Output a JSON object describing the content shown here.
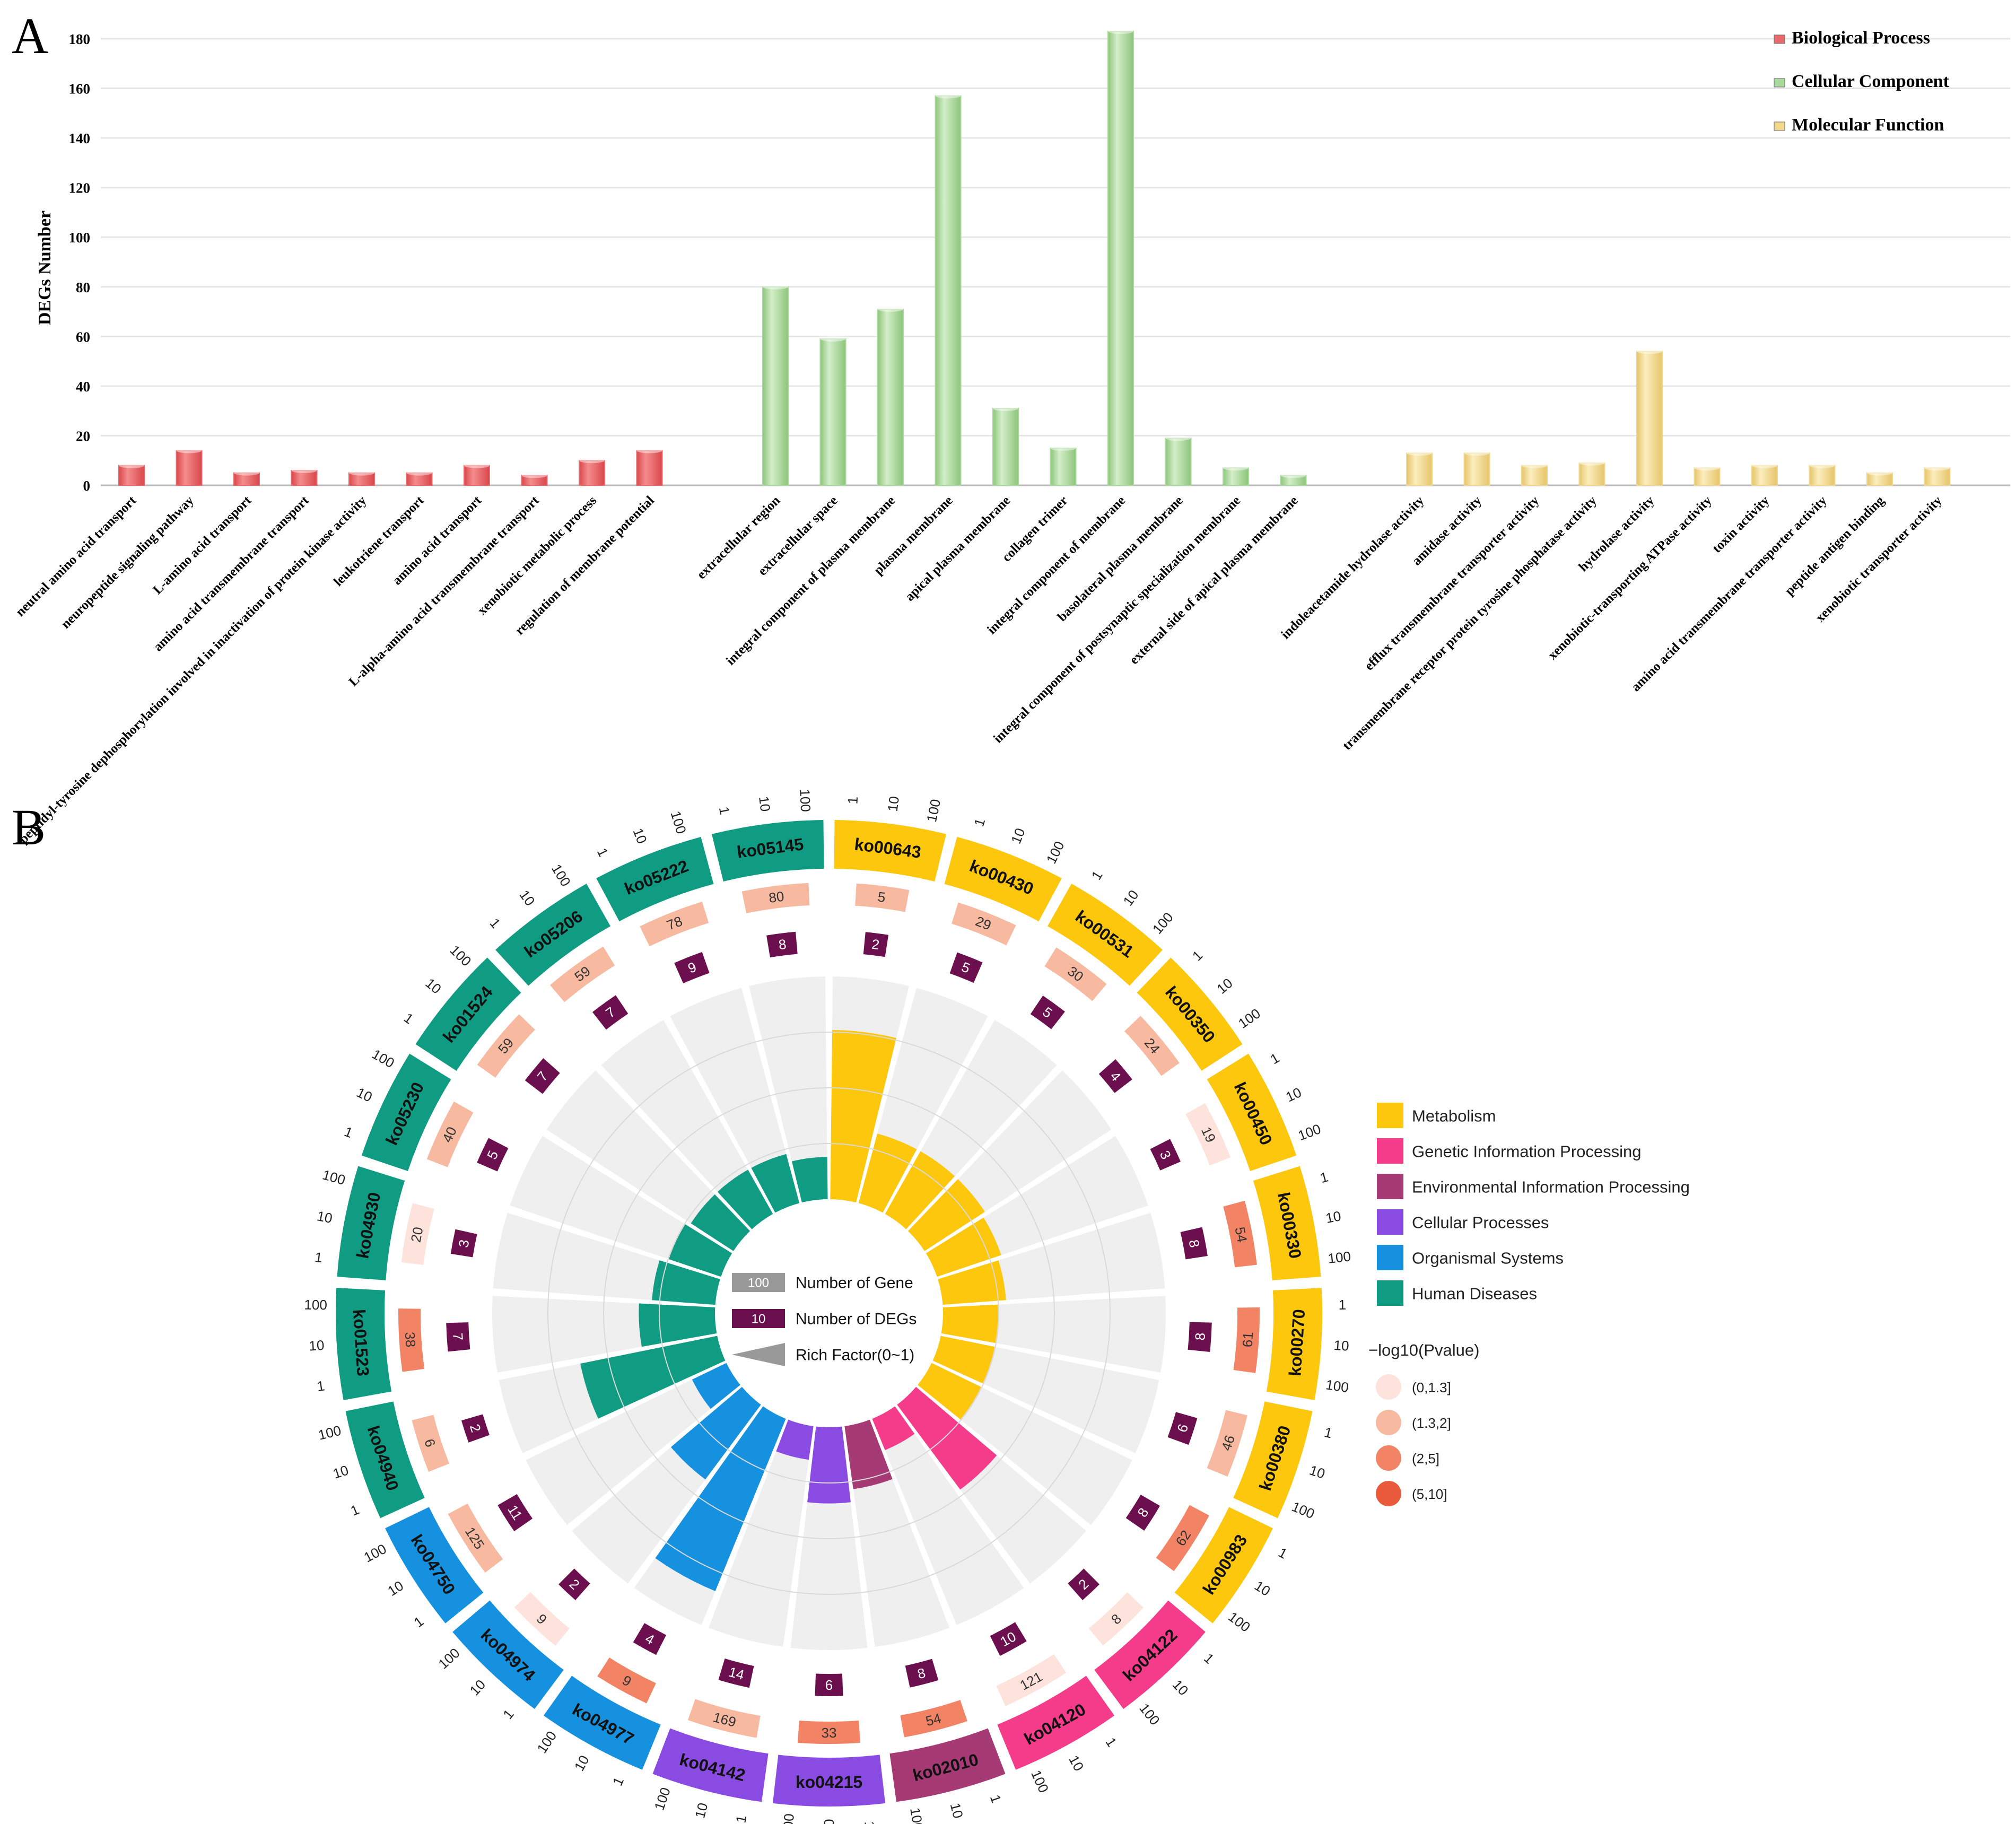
{
  "panels": {
    "a_label": "A",
    "b_label": "B"
  },
  "chart_data": [
    {
      "type": "bar",
      "panel": "A",
      "ylabel": "DEGs Number",
      "ylim": [
        0,
        180
      ],
      "yticks": [
        "0",
        "20",
        "40",
        "60",
        "80",
        "100",
        "120",
        "140",
        "160",
        "180"
      ],
      "grid": true,
      "legend_position": "top-right",
      "series": [
        {
          "name": "Biological Process",
          "color": "#e8696b",
          "categories": [
            "neutral amino acid transport",
            "neuropeptide signaling pathway",
            "L-amino acid transport",
            "amino acid transmembrane transport",
            "peptidyl-tyrosine dephosphorylation involved in inactivation of protein kinase activity",
            "leukotriene transport",
            "amino acid transport",
            "L-alpha-amino acid transmembrane transport",
            "xenobiotic metabolic process",
            "regulation of membrane potential"
          ],
          "values": [
            8,
            14,
            5,
            6,
            5,
            5,
            8,
            4,
            10,
            14
          ]
        },
        {
          "name": "Cellular Component",
          "color": "#a9d99b",
          "categories": [
            "extracellular region",
            "extracellular space",
            "integral component of plasma membrane",
            "plasma membrane",
            "apical plasma membrane",
            "collagen trimer",
            "integral component of membrane",
            "basolateral plasma membrane",
            "integral component of postsynaptic specialization membrane",
            "external side of apical plasma membrane"
          ],
          "values": [
            80,
            59,
            71,
            157,
            31,
            15,
            183,
            19,
            7,
            4
          ]
        },
        {
          "name": "Molecular Function",
          "color": "#f2d98e",
          "categories": [
            "indoleacetamide hydrolase activity",
            "amidase activity",
            "efflux transmembrane transporter activity",
            "transmembrane receptor protein tyrosine phosphatase activity",
            "hydrolase activity",
            "xenobiotic-transporting ATPase activity",
            "toxin activity",
            "amino acid transmembrane transporter activity",
            "peptide antigen binding",
            "xenobiotic transporter activity"
          ],
          "values": [
            13,
            13,
            8,
            9,
            54,
            7,
            8,
            8,
            5,
            7
          ]
        }
      ]
    },
    {
      "type": "circular-enrichment",
      "panel": "B",
      "scale_labels": [
        "1",
        "10",
        "100"
      ],
      "legend_inner": [
        {
          "label": "Number of Gene",
          "sample": "100",
          "color": "#999999"
        },
        {
          "label": "Number of DEGs",
          "sample": "10",
          "color": "#6b0f4e"
        },
        {
          "label": "Rich Factor(0~1)",
          "sample": "",
          "color": "#999999"
        }
      ],
      "categories": [
        {
          "name": "Metabolism",
          "color": "#fcc70d"
        },
        {
          "name": "Genetic Information Processing",
          "color": "#f53c8a"
        },
        {
          "name": "Environmental Information Processing",
          "color": "#a53a74"
        },
        {
          "name": "Cellular Processes",
          "color": "#8a4be2"
        },
        {
          "name": "Organismal Systems",
          "color": "#1591df"
        },
        {
          "name": "Human Diseases",
          "color": "#109c83"
        }
      ],
      "pvalue_title": "−log10(Pvalue)",
      "pvalue_bins": [
        {
          "label": "(0,1.3]",
          "color": "#fde3db"
        },
        {
          "label": "(1.3,2]",
          "color": "#f7b9a0"
        },
        {
          "label": "(2,5]",
          "color": "#f28465"
        },
        {
          "label": "(5,10]",
          "color": "#ea5a3d"
        }
      ],
      "pathways": [
        {
          "id": "ko00643",
          "category": "Metabolism",
          "genes": 5,
          "degs": 2,
          "rich": 0.4,
          "pbin": 1
        },
        {
          "id": "ko00430",
          "category": "Metabolism",
          "genes": 29,
          "degs": 5,
          "rich": 0.17,
          "pbin": 1
        },
        {
          "id": "ko00531",
          "category": "Metabolism",
          "genes": 30,
          "degs": 5,
          "rich": 0.17,
          "pbin": 1
        },
        {
          "id": "ko00350",
          "category": "Metabolism",
          "genes": 24,
          "degs": 4,
          "rich": 0.17,
          "pbin": 1
        },
        {
          "id": "ko00450",
          "category": "Metabolism",
          "genes": 19,
          "degs": 3,
          "rich": 0.16,
          "pbin": 0
        },
        {
          "id": "ko00330",
          "category": "Metabolism",
          "genes": 54,
          "degs": 8,
          "rich": 0.15,
          "pbin": 2
        },
        {
          "id": "ko00270",
          "category": "Metabolism",
          "genes": 61,
          "degs": 8,
          "rich": 0.13,
          "pbin": 2
        },
        {
          "id": "ko00380",
          "category": "Metabolism",
          "genes": 46,
          "degs": 6,
          "rich": 0.13,
          "pbin": 1
        },
        {
          "id": "ko00983",
          "category": "Metabolism",
          "genes": 62,
          "degs": 8,
          "rich": 0.13,
          "pbin": 2
        },
        {
          "id": "ko04122",
          "category": "Genetic Information Processing",
          "genes": 8,
          "degs": 2,
          "rich": 0.25,
          "pbin": 0
        },
        {
          "id": "ko04120",
          "category": "Genetic Information Processing",
          "genes": 121,
          "degs": 10,
          "rich": 0.08,
          "pbin": 0
        },
        {
          "id": "ko02010",
          "category": "Environmental Information Processing",
          "genes": 54,
          "degs": 8,
          "rich": 0.15,
          "pbin": 2
        },
        {
          "id": "ko04215",
          "category": "Cellular Processes",
          "genes": 33,
          "degs": 6,
          "rich": 0.18,
          "pbin": 2
        },
        {
          "id": "ko04142",
          "category": "Cellular Processes",
          "genes": 169,
          "degs": 14,
          "rich": 0.08,
          "pbin": 1
        },
        {
          "id": "ko04977",
          "category": "Organismal Systems",
          "genes": 9,
          "degs": 4,
          "rich": 0.44,
          "pbin": 2
        },
        {
          "id": "ko04974",
          "category": "Organismal Systems",
          "genes": 9,
          "degs": 2,
          "rich": 0.22,
          "pbin": 0
        },
        {
          "id": "ko04750",
          "category": "Organismal Systems",
          "genes": 125,
          "degs": 11,
          "rich": 0.09,
          "pbin": 1
        },
        {
          "id": "ko04940",
          "category": "Human Diseases",
          "genes": 6,
          "degs": 2,
          "rich": 0.33,
          "pbin": 1
        },
        {
          "id": "ko01523",
          "category": "Human Diseases",
          "genes": 38,
          "degs": 7,
          "rich": 0.18,
          "pbin": 2
        },
        {
          "id": "ko04930",
          "category": "Human Diseases",
          "genes": 20,
          "degs": 3,
          "rich": 0.15,
          "pbin": 0
        },
        {
          "id": "ko05230",
          "category": "Human Diseases",
          "genes": 40,
          "degs": 5,
          "rich": 0.13,
          "pbin": 1
        },
        {
          "id": "ko01524",
          "category": "Human Diseases",
          "genes": 59,
          "degs": 7,
          "rich": 0.12,
          "pbin": 1
        },
        {
          "id": "ko05206",
          "category": "Human Diseases",
          "genes": 59,
          "degs": 7,
          "rich": 0.12,
          "pbin": 1
        },
        {
          "id": "ko05222",
          "category": "Human Diseases",
          "genes": 78,
          "degs": 9,
          "rich": 0.12,
          "pbin": 1
        },
        {
          "id": "ko05145",
          "category": "Human Diseases",
          "genes": 80,
          "degs": 8,
          "rich": 0.1,
          "pbin": 1
        }
      ]
    }
  ]
}
